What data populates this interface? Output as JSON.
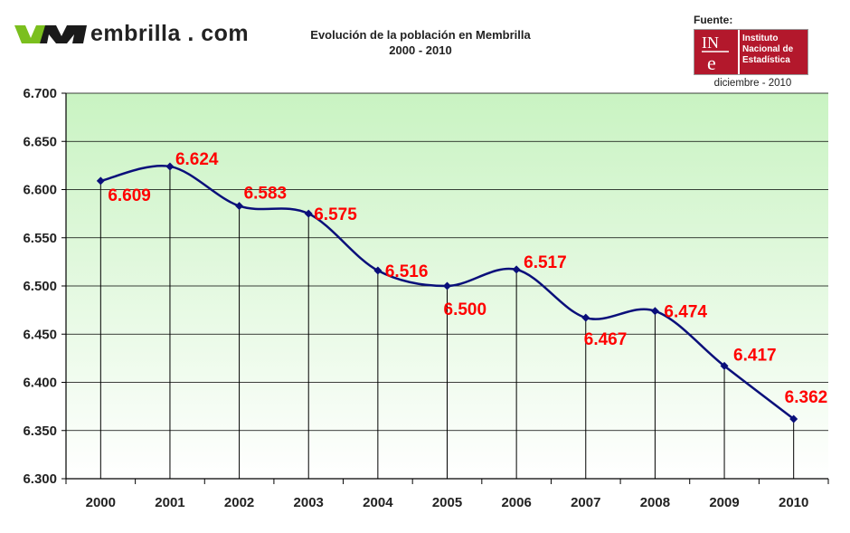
{
  "header": {
    "logo_text": "embrilla . com",
    "title": "Evolución de la población en Membrilla",
    "subtitle": "2000 - 2010",
    "source_label": "Fuente:",
    "source_org": [
      "Instituto",
      "Nacional de",
      "Estadística"
    ],
    "source_date": "diciembre - 2010"
  },
  "colors": {
    "line": "#0a0f7a",
    "labels": "#ff0000",
    "plot_bg_top": "#c9f3c2",
    "plot_bg_bottom": "#ffffff",
    "logo_green": "#7bbf1e",
    "ine_red": "#b3182c"
  },
  "chart_data": {
    "type": "line",
    "title": "Evolución de la población en Membrilla",
    "subtitle": "2000 - 2010",
    "categories": [
      "2000",
      "2001",
      "2002",
      "2003",
      "2004",
      "2005",
      "2006",
      "2007",
      "2008",
      "2009",
      "2010"
    ],
    "series": [
      {
        "values": [
          6609,
          6624,
          6583,
          6575,
          6516,
          6500,
          6517,
          6467,
          6474,
          6417,
          6362
        ]
      }
    ],
    "data_labels": [
      "6.609",
      "6.624",
      "6.583",
      "6.575",
      "6.516",
      "6.500",
      "6.517",
      "6.467",
      "6.474",
      "6.417",
      "6.362"
    ],
    "y_ticks": [
      6300,
      6350,
      6400,
      6450,
      6500,
      6550,
      6600,
      6650,
      6700
    ],
    "y_tick_labels": [
      "6.300",
      "6.350",
      "6.400",
      "6.450",
      "6.500",
      "6.550",
      "6.600",
      "6.650",
      "6.700"
    ],
    "ylim": [
      6300,
      6700
    ],
    "grid": true,
    "drop_lines": true,
    "legend": "none",
    "xlabel": "",
    "ylabel": ""
  }
}
